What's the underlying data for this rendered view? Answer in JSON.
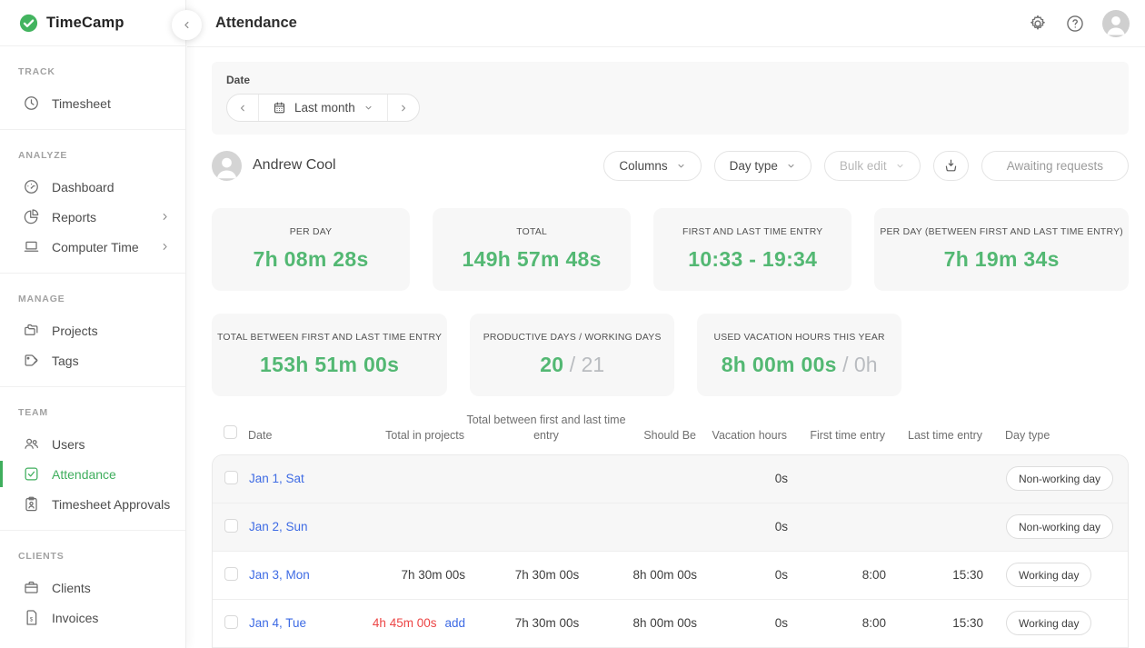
{
  "colors": {
    "brand_green": "#43b45f",
    "value_green": "#53b873",
    "link_blue": "#3e6be4",
    "alert_red": "#ec4545"
  },
  "brand": {
    "name": "TimeCamp"
  },
  "sidebar": {
    "sections": [
      {
        "label": "TRACK",
        "items": [
          {
            "label": "Timesheet",
            "icon": "clock-icon"
          }
        ]
      },
      {
        "label": "ANALYZE",
        "items": [
          {
            "label": "Dashboard",
            "icon": "gauge-icon"
          },
          {
            "label": "Reports",
            "icon": "pie-chart-icon",
            "chevron": true
          },
          {
            "label": "Computer Time",
            "icon": "laptop-icon",
            "chevron": true
          }
        ]
      },
      {
        "label": "MANAGE",
        "items": [
          {
            "label": "Projects",
            "icon": "folder-icon"
          },
          {
            "label": "Tags",
            "icon": "tag-icon"
          }
        ]
      },
      {
        "label": "TEAM",
        "items": [
          {
            "label": "Users",
            "icon": "users-icon"
          },
          {
            "label": "Attendance",
            "icon": "checkbox-icon",
            "active": true
          },
          {
            "label": "Timesheet Approvals",
            "icon": "clipboard-icon"
          }
        ]
      },
      {
        "label": "CLIENTS",
        "items": [
          {
            "label": "Clients",
            "icon": "briefcase-icon"
          },
          {
            "label": "Invoices",
            "icon": "invoice-icon"
          }
        ]
      }
    ]
  },
  "header": {
    "title": "Attendance"
  },
  "date_filter": {
    "label": "Date",
    "selected_range": "Last month"
  },
  "user": {
    "name": "Andrew Cool"
  },
  "toolbar": {
    "columns_label": "Columns",
    "day_type_label": "Day type",
    "bulk_edit_label": "Bulk edit",
    "awaiting_label": "Awaiting requests"
  },
  "stats_row1": [
    {
      "label": "PER DAY",
      "value": "7h 08m 28s"
    },
    {
      "label": "TOTAL",
      "value": "149h 57m 48s"
    },
    {
      "label": "FIRST AND LAST TIME ENTRY",
      "value": "10:33 - 19:34"
    },
    {
      "label": "PER DAY (BETWEEN FIRST AND LAST TIME ENTRY)",
      "value": "7h 19m 34s"
    }
  ],
  "stats_row2": [
    {
      "label": "TOTAL BETWEEN FIRST AND LAST TIME ENTRY",
      "value": "153h 51m 00s"
    },
    {
      "label": "PRODUCTIVE DAYS / WORKING DAYS",
      "value": "20",
      "secondary": "21"
    },
    {
      "label": "USED VACATION HOURS THIS YEAR",
      "value": "8h 00m 00s",
      "secondary": "0h"
    }
  ],
  "table": {
    "columns": [
      {
        "id": "date",
        "label": "Date"
      },
      {
        "id": "total_in_projects",
        "label": "Total in projects"
      },
      {
        "id": "total_between",
        "label": "Total between first and last time entry"
      },
      {
        "id": "should_be",
        "label": "Should Be"
      },
      {
        "id": "vacation_hours",
        "label": "Vacation hours"
      },
      {
        "id": "first_entry",
        "label": "First time entry"
      },
      {
        "id": "last_entry",
        "label": "Last time entry"
      },
      {
        "id": "day_type",
        "label": "Day type"
      }
    ],
    "rows": [
      {
        "date": "Jan 1, Sat",
        "total_in_projects": "",
        "add_link": "",
        "total_between": "",
        "should_be": "",
        "vacation_hours": "0s",
        "first_entry": "",
        "last_entry": "",
        "day_type": "Non-working day",
        "weekend": true,
        "alert": false
      },
      {
        "date": "Jan 2, Sun",
        "total_in_projects": "",
        "add_link": "",
        "total_between": "",
        "should_be": "",
        "vacation_hours": "0s",
        "first_entry": "",
        "last_entry": "",
        "day_type": "Non-working day",
        "weekend": true,
        "alert": false
      },
      {
        "date": "Jan 3, Mon",
        "total_in_projects": "7h 30m 00s",
        "add_link": "",
        "total_between": "7h 30m 00s",
        "should_be": "8h 00m 00s",
        "vacation_hours": "0s",
        "first_entry": "8:00",
        "last_entry": "15:30",
        "day_type": "Working day",
        "weekend": false,
        "alert": false
      },
      {
        "date": "Jan 4, Tue",
        "total_in_projects": "4h 45m 00s",
        "add_link": "add",
        "total_between": "7h 30m 00s",
        "should_be": "8h 00m 00s",
        "vacation_hours": "0s",
        "first_entry": "8:00",
        "last_entry": "15:30",
        "day_type": "Working day",
        "weekend": false,
        "alert": true
      }
    ]
  }
}
